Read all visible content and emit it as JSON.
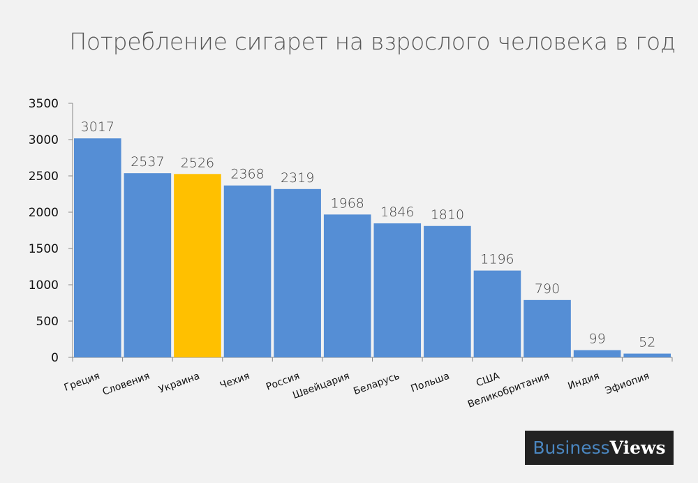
{
  "chart_data": {
    "type": "bar",
    "title": "Потребление сигарет на взрослого человека в год",
    "categories": [
      "Греция",
      "Словения",
      "Украина",
      "Чехия",
      "Россия",
      "Швейцария",
      "Беларусь",
      "Польша",
      "США",
      "Великобритания",
      "Индия",
      "Эфиопия"
    ],
    "values": [
      3017,
      2537,
      2526,
      2368,
      2319,
      1968,
      1846,
      1810,
      1196,
      790,
      99,
      52
    ],
    "highlight": "Украина",
    "colors": {
      "bar": "#558ed5",
      "highlight": "#ffc000"
    },
    "ylim": [
      0,
      3500
    ],
    "yticks": [
      0,
      500,
      1000,
      1500,
      2000,
      2500,
      3000,
      3500
    ],
    "xlabel": "",
    "ylabel": "",
    "grid": false,
    "data_labels": true
  },
  "logo": {
    "part1": "Business",
    "part2": "Views"
  }
}
